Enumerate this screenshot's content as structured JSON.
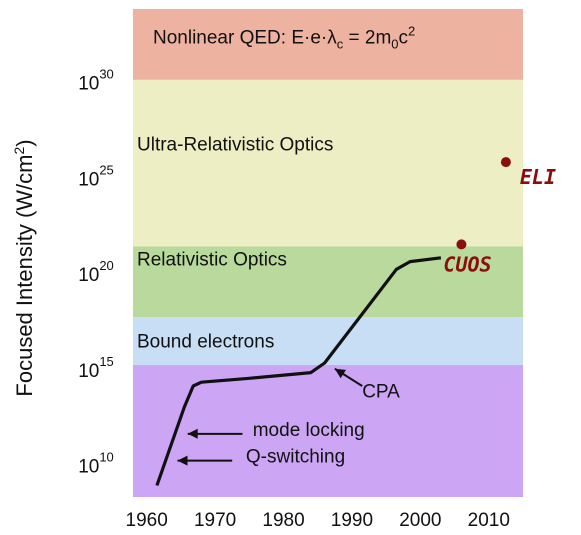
{
  "chart_data": {
    "type": "line",
    "title": "",
    "xlabel": "",
    "ylabel": "Focused Intensity (W/cm²)",
    "ylabel_base": "Focused Intensity (W/cm",
    "ylabel_sup": "2",
    "ylabel_end": ")",
    "xlim": [
      1958,
      2015
    ],
    "ylim_log10": [
      8.3,
      33.8
    ],
    "y_scale": "log",
    "grid": false,
    "x_ticks": [
      {
        "value": 1960,
        "label": "1960"
      },
      {
        "value": 1970,
        "label": "1970"
      },
      {
        "value": 1980,
        "label": "1980"
      },
      {
        "value": 1990,
        "label": "1990"
      },
      {
        "value": 2000,
        "label": "2000"
      },
      {
        "value": 2010,
        "label": "2010"
      }
    ],
    "y_ticks": [
      {
        "value": 10,
        "base": "10",
        "exp": "10"
      },
      {
        "value": 15,
        "base": "10",
        "exp": "15"
      },
      {
        "value": 20,
        "base": "10",
        "exp": "20"
      },
      {
        "value": 25,
        "base": "10",
        "exp": "25"
      },
      {
        "value": 30,
        "base": "10",
        "exp": "30"
      }
    ],
    "bands": [
      {
        "from": 8.3,
        "to": 15.2,
        "color": "#cca6f5",
        "label": ""
      },
      {
        "from": 15.2,
        "to": 17.7,
        "color": "#c8def5",
        "label": "Bound electrons",
        "label_y": 16.1
      },
      {
        "from": 17.7,
        "to": 21.4,
        "color": "#b9da9c",
        "label": "Relativistic Optics",
        "label_y": 20.4
      },
      {
        "from": 21.4,
        "to": 30.1,
        "color": "#edeec3",
        "label": "Ultra-Relativistic Optics",
        "label_y": 26.4
      },
      {
        "from": 30.1,
        "to": 33.8,
        "color": "#eeb3a0",
        "label": "",
        "label_y": 32.0
      }
    ],
    "qed_label": {
      "prefix": "Nonlinear QED: E·e·λ",
      "sub1": "c",
      "mid": " = 2m",
      "sub2": "0",
      "c": "c",
      "sup": "2"
    },
    "series": [
      {
        "x": [
          1961.5,
          1965.5,
          1966.8,
          1968.0,
          1975.0,
          1984.0,
          1986.0,
          1996.5,
          1998.5,
          2003.0
        ],
        "log10_y": [
          8.9,
          13.0,
          14.1,
          14.3,
          14.5,
          14.8,
          15.3,
          20.2,
          20.6,
          20.8
        ]
      }
    ],
    "points": [
      {
        "name": "CUOS",
        "x": 2006,
        "log10_y": 21.5,
        "color": "#8b0e0e"
      },
      {
        "name": "ELI",
        "x": 2012.5,
        "log10_y": 25.8,
        "color": "#8b0e0e"
      }
    ],
    "annotations": [
      {
        "text": "CPA",
        "arrow_from": [
          1991.5,
          14.1
        ],
        "arrow_to": [
          1987.5,
          15.0
        ],
        "text_at": [
          1991.5,
          13.5
        ]
      },
      {
        "text": "mode locking",
        "arrow_from": [
          1974.0,
          11.6
        ],
        "arrow_to": [
          1966.0,
          11.6
        ],
        "text_at": [
          1975.5,
          11.5
        ]
      },
      {
        "text": "Q-switching",
        "arrow_from": [
          1972.5,
          10.2
        ],
        "arrow_to": [
          1964.5,
          10.2
        ],
        "text_at": [
          1974.5,
          10.1
        ]
      }
    ]
  }
}
